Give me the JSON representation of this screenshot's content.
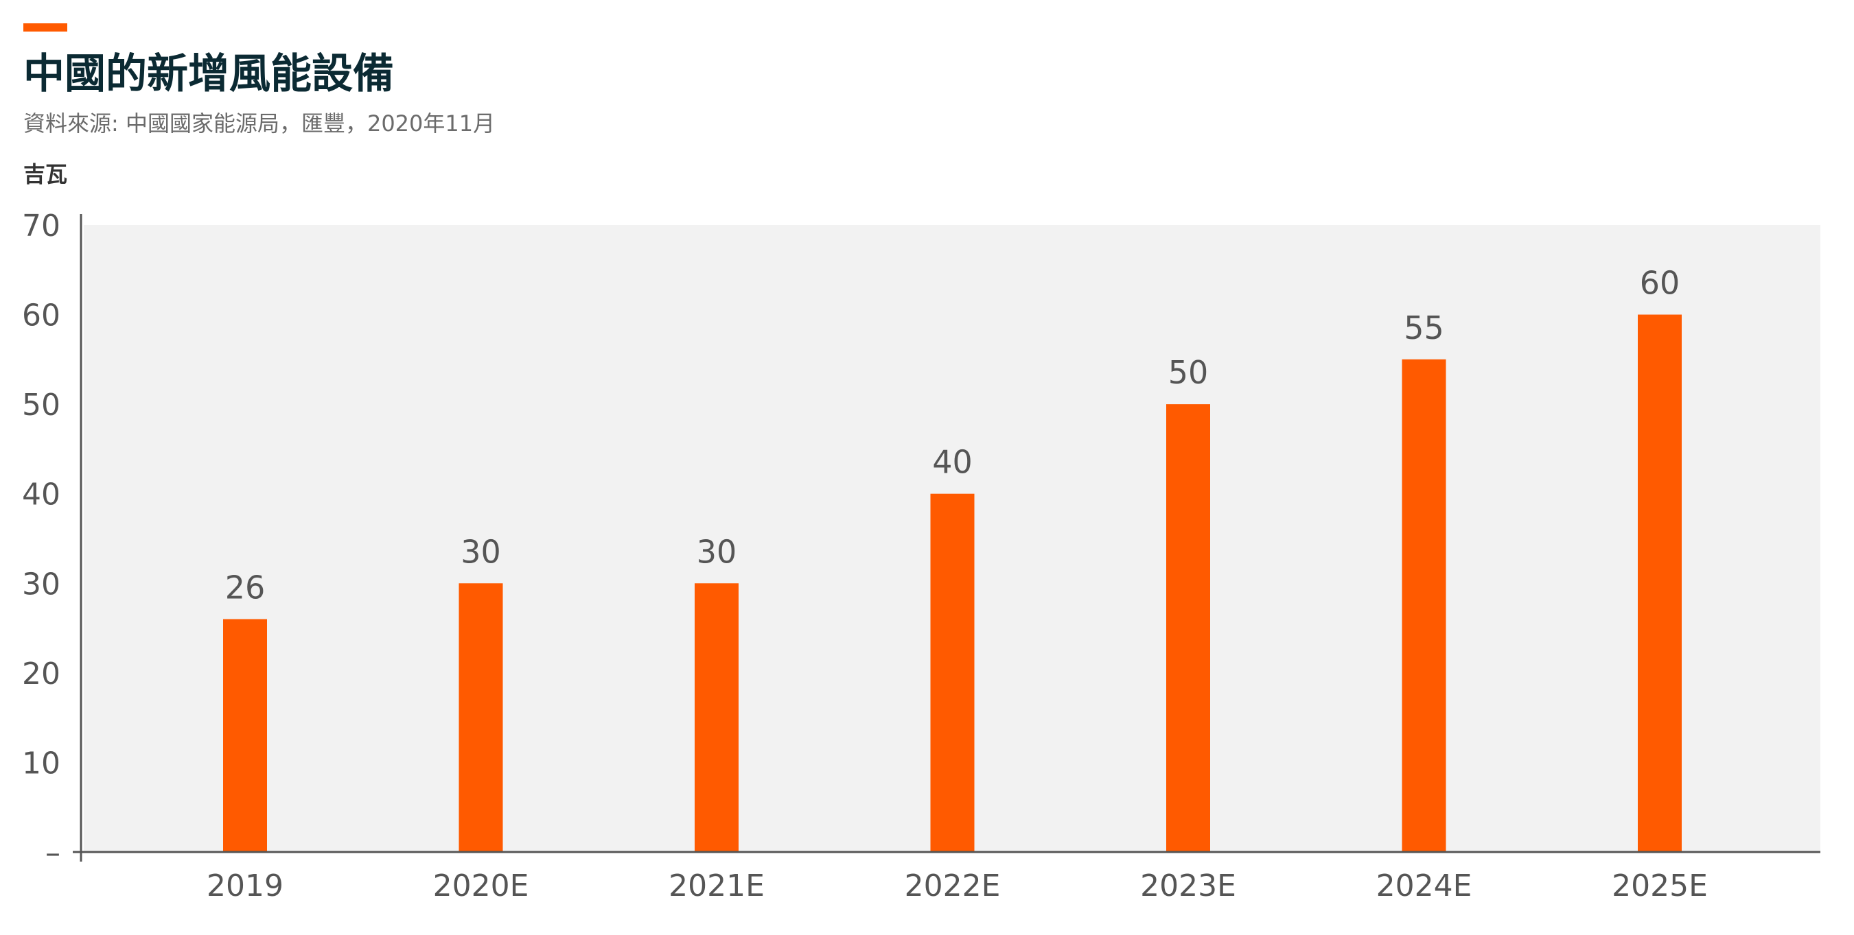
{
  "header": {
    "title": "中國的新增風能設備",
    "source": "資料來源: 中國國家能源局，匯豐，2020年11月",
    "unit": "吉瓦"
  },
  "colors": {
    "accent": "#ff5a00",
    "bar": "#ff5a00",
    "plot_background": "#f2f2f2",
    "axis": "#555555",
    "title": "#0b2a33"
  },
  "chart_data": {
    "type": "bar",
    "categories": [
      "2019",
      "2020E",
      "2021E",
      "2022E",
      "2023E",
      "2024E",
      "2025E"
    ],
    "values": [
      26,
      30,
      30,
      40,
      50,
      55,
      60
    ],
    "data_labels": [
      "26",
      "30",
      "30",
      "40",
      "50",
      "55",
      "60"
    ],
    "ylim": [
      0,
      70
    ],
    "yticks": [
      0,
      10,
      20,
      30,
      40,
      50,
      60,
      70
    ],
    "ytick_labels": [
      "–",
      "10",
      "20",
      "30",
      "40",
      "50",
      "60",
      "70"
    ],
    "ylabel": "吉瓦",
    "xlabel": "",
    "grid": false,
    "legend": "none"
  }
}
